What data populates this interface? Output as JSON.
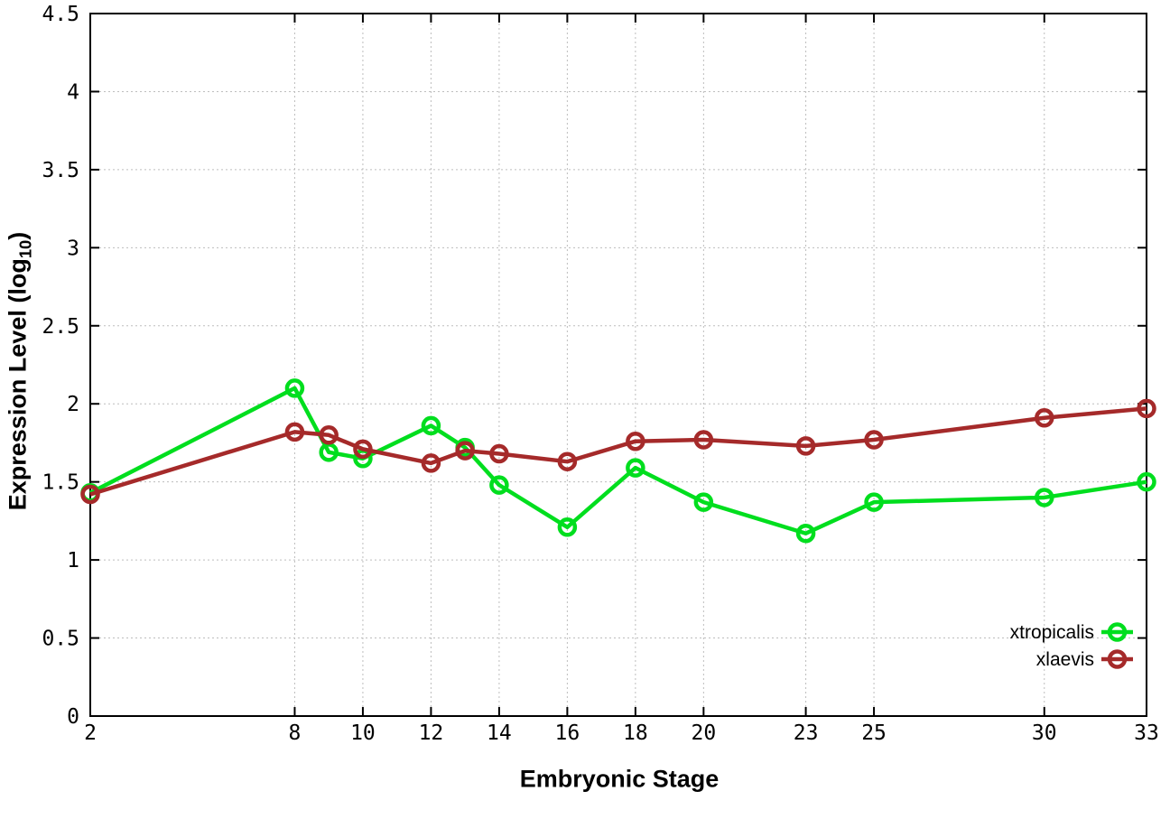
{
  "chart_data": {
    "type": "line",
    "title": "",
    "xlabel": "Embryonic Stage",
    "ylabel": "Expression Level (log10)",
    "ylabel_parts": {
      "pre": "Expression Level (log",
      "sub": "10",
      "post": ")"
    },
    "xlim": [
      2,
      33
    ],
    "ylim": [
      0,
      4.5
    ],
    "xticks": [
      2,
      8,
      10,
      12,
      14,
      16,
      18,
      20,
      23,
      25,
      30,
      33
    ],
    "xtick_labels": [
      "2",
      "8",
      "10",
      "12",
      "14",
      "16",
      "18",
      "20",
      "23",
      "25",
      "30",
      "33"
    ],
    "yticks": [
      0,
      0.5,
      1,
      1.5,
      2,
      2.5,
      3,
      3.5,
      4,
      4.5
    ],
    "ytick_labels": [
      "0",
      "0.5",
      "1",
      "1.5",
      "2",
      "2.5",
      "3",
      "3.5",
      "4",
      "4.5"
    ],
    "grid": true,
    "grid_style": "dotted",
    "legend_position": "inside-bottom-right",
    "marker": "open-circle",
    "background": "#ffffff",
    "axis_color": "#000000",
    "grid_color": "#bdbdbd",
    "x": [
      2,
      8,
      9,
      10,
      12,
      13,
      14,
      16,
      18,
      20,
      23,
      25,
      30,
      33
    ],
    "series": [
      {
        "name": "xtropicalis",
        "color": "#00de1e",
        "values": [
          1.43,
          2.1,
          1.69,
          1.65,
          1.86,
          1.72,
          1.48,
          1.21,
          1.59,
          1.37,
          1.17,
          1.37,
          1.4,
          1.5
        ]
      },
      {
        "name": "xlaevis",
        "color": "#a52a2a",
        "values": [
          1.42,
          1.82,
          1.8,
          1.71,
          1.62,
          1.7,
          1.68,
          1.63,
          1.76,
          1.77,
          1.73,
          1.77,
          1.91,
          1.97
        ]
      }
    ]
  }
}
